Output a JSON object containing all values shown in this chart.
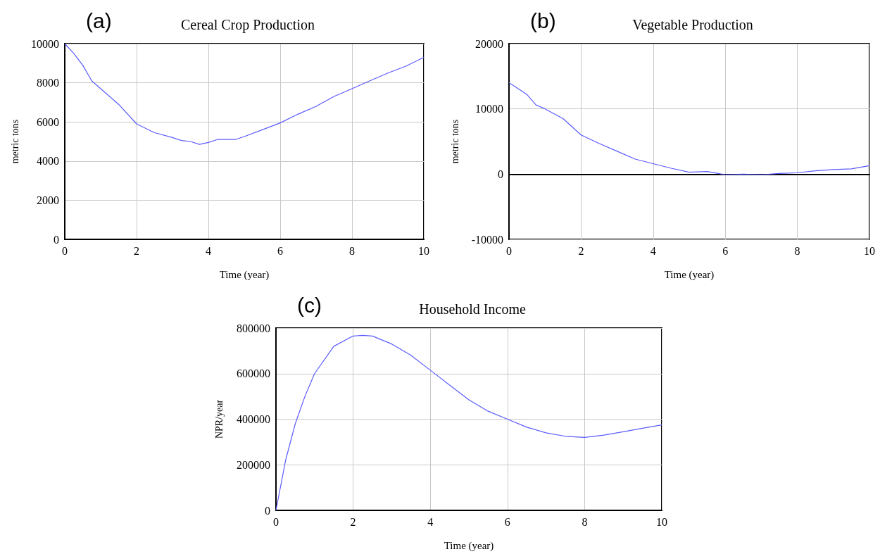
{
  "chart_data": [
    {
      "type": "line",
      "title": "Cereal Crop Production",
      "xlabel": "Time (year)",
      "ylabel": "metric tons",
      "annotations": [
        "(a)"
      ],
      "x": [
        0,
        0.25,
        0.5,
        0.75,
        1,
        1.5,
        2,
        2.5,
        3,
        3.25,
        3.5,
        3.75,
        4,
        4.25,
        4.5,
        4.75,
        5,
        5.5,
        6,
        6.5,
        7,
        7.5,
        8,
        8.5,
        9,
        9.5,
        10
      ],
      "series": [
        {
          "color": "#5b5bff",
          "values": [
            10000,
            9500,
            8900,
            8100,
            7700,
            6900,
            5900,
            5450,
            5200,
            5050,
            5000,
            4850,
            4950,
            5100,
            5100,
            5100,
            5250,
            5600,
            5950,
            6400,
            6800,
            7300,
            7700,
            8100,
            8500,
            8850,
            9300
          ]
        }
      ],
      "xlim": [
        0,
        10
      ],
      "xticks": [
        0,
        2,
        4,
        6,
        8,
        10
      ],
      "ylim": [
        0,
        10000
      ],
      "yticks": [
        0,
        2000,
        4000,
        6000,
        8000,
        10000
      ],
      "grid": true,
      "line_style": "solid"
    },
    {
      "type": "line",
      "title": "Vegetable Production",
      "xlabel": "Time (year)",
      "ylabel": "metric tons",
      "annotations": [
        "(b)"
      ],
      "x": [
        0,
        0.5,
        0.75,
        1,
        1.5,
        2,
        2.5,
        3,
        3.5,
        4,
        4.5,
        5,
        5.5,
        6,
        6.5,
        7,
        7.5,
        8,
        8.5,
        9,
        9.5,
        10
      ],
      "series": [
        {
          "color": "#5b5bff",
          "values": [
            14000,
            12200,
            10600,
            10000,
            8500,
            6000,
            4700,
            3500,
            2300,
            1600,
            900,
            300,
            400,
            -100,
            0,
            -100,
            100,
            200,
            500,
            700,
            800,
            1300
          ]
        }
      ],
      "xlim": [
        0,
        10
      ],
      "xticks": [
        0,
        2,
        4,
        6,
        8,
        10
      ],
      "ylim": [
        -10000,
        20000
      ],
      "yticks": [
        -10000,
        0,
        10000,
        20000
      ],
      "grid": true,
      "line_style": "solid"
    },
    {
      "type": "line",
      "title": "Household Income",
      "xlabel": "Time (year)",
      "ylabel": "NPR/year",
      "annotations": [
        "(c)"
      ],
      "x": [
        0,
        0.25,
        0.5,
        0.75,
        1,
        1.5,
        2,
        2.25,
        2.5,
        3,
        3.5,
        4,
        4.5,
        5,
        5.5,
        6,
        6.5,
        7,
        7.5,
        8,
        8.5,
        9,
        9.5,
        10
      ],
      "series": [
        {
          "color": "#5b5bff",
          "values": [
            0,
            220000,
            380000,
            500000,
            600000,
            720000,
            765000,
            768000,
            765000,
            730000,
            680000,
            615000,
            550000,
            485000,
            435000,
            400000,
            365000,
            340000,
            325000,
            320000,
            330000,
            345000,
            360000,
            375000
          ]
        }
      ],
      "xlim": [
        0,
        10
      ],
      "xticks": [
        0,
        2,
        4,
        6,
        8,
        10
      ],
      "ylim": [
        0,
        800000
      ],
      "yticks": [
        0,
        200000,
        400000,
        600000,
        800000
      ],
      "grid": true,
      "line_style": "solid"
    }
  ]
}
